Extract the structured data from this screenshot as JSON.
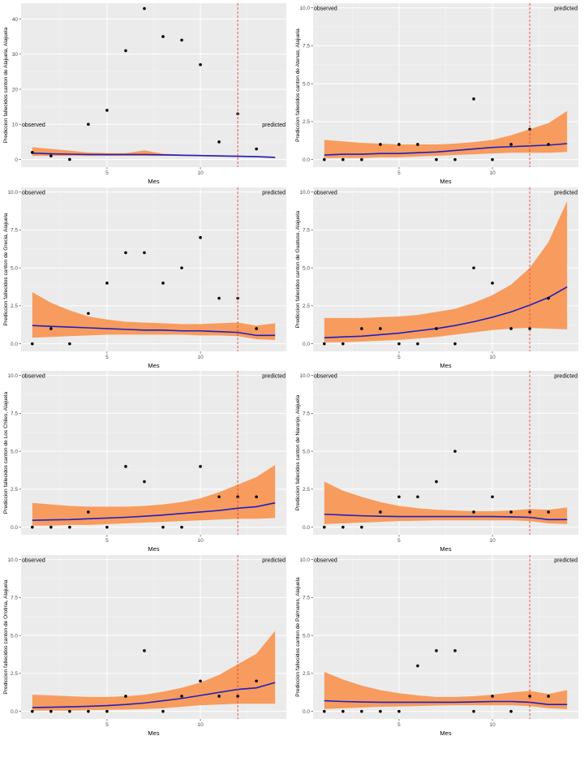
{
  "chart_data": [
    {
      "type": "line",
      "ylabel": "Prediccion fallecidos canton de Alajuela, Alajuela",
      "xlabel": "Mes",
      "xticks": [
        5,
        10
      ],
      "yticks": [
        0,
        10,
        20,
        30,
        40
      ],
      "xlim": [
        0.4,
        14.6
      ],
      "ylim": [
        -2.2,
        44.5
      ],
      "cutoff": 12,
      "annotations": [
        {
          "text": "observed"
        },
        {
          "text": "predicted"
        }
      ],
      "label_y": 10,
      "points": {
        "x": [
          1,
          2,
          3,
          4,
          5,
          6,
          7,
          8,
          9,
          10,
          11,
          12,
          13
        ],
        "y": [
          2,
          1,
          0,
          10,
          14,
          31,
          43,
          35,
          34,
          27,
          5,
          13,
          3
        ]
      },
      "fit": {
        "x": [
          1,
          2,
          3,
          4,
          5,
          6,
          7,
          8,
          9,
          10,
          11,
          12,
          13,
          14
        ],
        "y": [
          1.8,
          1.6,
          1.5,
          1.4,
          1.4,
          1.4,
          1.4,
          1.3,
          1.2,
          1.1,
          1.0,
          0.9,
          0.8,
          0.6
        ],
        "lower": [
          1.0,
          1.0,
          1.0,
          1.0,
          1.0,
          1.0,
          1.0,
          1.0,
          1.0,
          0.9,
          0.8,
          0.7,
          0.6,
          0.4
        ],
        "upper": [
          3.5,
          3.0,
          2.5,
          2.0,
          1.8,
          1.8,
          2.6,
          1.6,
          1.4,
          1.3,
          1.2,
          1.1,
          1.0,
          0.8
        ]
      }
    },
    {
      "type": "line",
      "ylabel": "Prediccion fallecidos canton de Atenas, Alajuela",
      "xlabel": "Mes",
      "xticks": [
        5,
        10
      ],
      "yticks": [
        0,
        2.5,
        5.0,
        7.5,
        10.0
      ],
      "ytick_labels": [
        "0.0",
        "2.5",
        "5.0",
        "7.5",
        "10.0"
      ],
      "xlim": [
        0.4,
        14.6
      ],
      "ylim": [
        -0.5,
        10.3
      ],
      "cutoff": 12,
      "annotations": [
        {
          "text": "observed"
        },
        {
          "text": "predicted"
        }
      ],
      "label_y": 10,
      "points": {
        "x": [
          1,
          2,
          3,
          4,
          5,
          6,
          7,
          8,
          9,
          10,
          11,
          12,
          13
        ],
        "y": [
          0,
          0,
          0,
          1,
          1,
          1,
          0,
          0,
          4,
          0,
          1,
          2,
          1
        ]
      },
      "fit": {
        "x": [
          1,
          2,
          3,
          4,
          5,
          6,
          7,
          8,
          9,
          10,
          11,
          12,
          13,
          14
        ],
        "y": [
          0.3,
          0.35,
          0.35,
          0.4,
          0.4,
          0.45,
          0.5,
          0.6,
          0.7,
          0.8,
          0.85,
          0.9,
          0.95,
          1.05
        ],
        "lower": [
          0.1,
          0.1,
          0.1,
          0.15,
          0.15,
          0.2,
          0.25,
          0.3,
          0.35,
          0.4,
          0.45,
          0.45,
          0.45,
          0.5
        ],
        "upper": [
          1.3,
          1.2,
          1.1,
          1.05,
          1.0,
          1.0,
          1.0,
          1.05,
          1.15,
          1.3,
          1.6,
          2.0,
          2.4,
          3.2
        ]
      }
    },
    {
      "type": "line",
      "ylabel": "Prediccion fallecidos canton de Grecia, Alajuela",
      "xlabel": "Mes",
      "xticks": [
        5,
        10
      ],
      "yticks": [
        0,
        2.5,
        5.0,
        7.5,
        10.0
      ],
      "ytick_labels": [
        "0.0",
        "2.5",
        "5.0",
        "7.5",
        "10.0"
      ],
      "xlim": [
        0.4,
        14.6
      ],
      "ylim": [
        -0.5,
        10.3
      ],
      "cutoff": 12,
      "annotations": [
        {
          "text": "observed"
        },
        {
          "text": "predicted"
        }
      ],
      "label_y": 10,
      "points": {
        "x": [
          1,
          2,
          3,
          4,
          5,
          6,
          7,
          8,
          9,
          10,
          11,
          12,
          13
        ],
        "y": [
          0,
          1,
          0,
          2,
          4,
          6,
          6,
          4,
          5,
          7,
          3,
          3,
          1
        ]
      },
      "fit": {
        "x": [
          1,
          2,
          3,
          4,
          5,
          6,
          7,
          8,
          9,
          10,
          11,
          12,
          13,
          14
        ],
        "y": [
          1.2,
          1.15,
          1.1,
          1.05,
          1.0,
          0.95,
          0.9,
          0.9,
          0.85,
          0.85,
          0.8,
          0.75,
          0.55,
          0.55
        ],
        "lower": [
          0.4,
          0.45,
          0.5,
          0.55,
          0.6,
          0.6,
          0.6,
          0.6,
          0.6,
          0.55,
          0.55,
          0.5,
          0.3,
          0.25
        ],
        "upper": [
          3.4,
          2.7,
          2.2,
          1.8,
          1.6,
          1.45,
          1.4,
          1.35,
          1.3,
          1.3,
          1.35,
          1.4,
          1.2,
          1.35
        ]
      }
    },
    {
      "type": "line",
      "ylabel": "Prediccion fallecidos canton de Guatuso, Alajuela",
      "xlabel": "Mes",
      "xticks": [
        5,
        10
      ],
      "yticks": [
        0,
        2.5,
        5.0,
        7.5,
        10.0
      ],
      "ytick_labels": [
        "0.0",
        "2.5",
        "5.0",
        "7.5",
        "10.0"
      ],
      "xlim": [
        0.4,
        14.6
      ],
      "ylim": [
        -0.5,
        10.3
      ],
      "cutoff": 12,
      "annotations": [
        {
          "text": "observed"
        },
        {
          "text": "predicted"
        }
      ],
      "label_y": 10,
      "points": {
        "x": [
          1,
          2,
          3,
          4,
          5,
          6,
          7,
          8,
          9,
          10,
          11,
          12,
          13
        ],
        "y": [
          0,
          0,
          1,
          1,
          0,
          0,
          1,
          0,
          5,
          4,
          1,
          1,
          3
        ]
      },
      "fit": {
        "x": [
          1,
          2,
          3,
          4,
          5,
          6,
          7,
          8,
          9,
          10,
          11,
          12,
          13,
          14
        ],
        "y": [
          0.4,
          0.45,
          0.5,
          0.6,
          0.7,
          0.85,
          1.0,
          1.2,
          1.45,
          1.75,
          2.1,
          2.55,
          3.05,
          3.75
        ],
        "lower": [
          0.1,
          0.1,
          0.15,
          0.2,
          0.25,
          0.35,
          0.45,
          0.6,
          0.75,
          0.9,
          1.0,
          1.05,
          1.0,
          0.95
        ],
        "upper": [
          1.7,
          1.7,
          1.7,
          1.75,
          1.8,
          1.9,
          2.1,
          2.3,
          2.7,
          3.2,
          3.9,
          5.0,
          6.7,
          9.4
        ]
      }
    },
    {
      "type": "line",
      "ylabel": "Prediccion fallecidos canton de Los Chiles, Alajuela",
      "xlabel": "Mes",
      "xticks": [
        5,
        10
      ],
      "yticks": [
        0,
        2.5,
        5.0,
        7.5,
        10.0
      ],
      "ytick_labels": [
        "0.0",
        "2.5",
        "5.0",
        "7.5",
        "10.0"
      ],
      "xlim": [
        0.4,
        14.6
      ],
      "ylim": [
        -0.5,
        10.3
      ],
      "cutoff": 12,
      "annotations": [
        {
          "text": "observed"
        },
        {
          "text": "predicted"
        }
      ],
      "label_y": 10,
      "points": {
        "x": [
          1,
          2,
          3,
          4,
          5,
          6,
          7,
          8,
          9,
          10,
          11,
          12,
          13
        ],
        "y": [
          0,
          0,
          0,
          1,
          0,
          4,
          3,
          0,
          0,
          4,
          2,
          2,
          2
        ]
      },
      "fit": {
        "x": [
          1,
          2,
          3,
          4,
          5,
          6,
          7,
          8,
          9,
          10,
          11,
          12,
          13,
          14
        ],
        "y": [
          0.45,
          0.48,
          0.5,
          0.55,
          0.6,
          0.65,
          0.72,
          0.8,
          0.9,
          1.0,
          1.1,
          1.25,
          1.35,
          1.6
        ],
        "lower": [
          0.1,
          0.1,
          0.15,
          0.15,
          0.2,
          0.25,
          0.3,
          0.35,
          0.4,
          0.45,
          0.5,
          0.55,
          0.55,
          0.6
        ],
        "upper": [
          1.6,
          1.5,
          1.4,
          1.35,
          1.35,
          1.35,
          1.4,
          1.5,
          1.65,
          1.9,
          2.3,
          2.8,
          3.3,
          4.1
        ]
      }
    },
    {
      "type": "line",
      "ylabel": "Prediccion fallecidos canton de Naranjo, Alajuela",
      "xlabel": "Mes",
      "xticks": [
        5,
        10
      ],
      "yticks": [
        0,
        2.5,
        5.0,
        7.5,
        10.0
      ],
      "ytick_labels": [
        "0.0",
        "2.5",
        "5.0",
        "7.5",
        "10.0"
      ],
      "xlim": [
        0.4,
        14.6
      ],
      "ylim": [
        -0.5,
        10.3
      ],
      "cutoff": 12,
      "annotations": [
        {
          "text": "observed"
        },
        {
          "text": "predicted"
        }
      ],
      "label_y": 10,
      "points": {
        "x": [
          1,
          2,
          3,
          4,
          5,
          6,
          7,
          8,
          9,
          10,
          11,
          12,
          13
        ],
        "y": [
          0,
          0,
          0,
          1,
          2,
          2,
          3,
          5,
          1,
          2,
          1,
          1,
          1
        ]
      },
      "fit": {
        "x": [
          1,
          2,
          3,
          4,
          5,
          6,
          7,
          8,
          9,
          10,
          11,
          12,
          13,
          14
        ],
        "y": [
          0.85,
          0.8,
          0.75,
          0.72,
          0.7,
          0.7,
          0.7,
          0.7,
          0.7,
          0.7,
          0.68,
          0.65,
          0.5,
          0.5
        ],
        "lower": [
          0.2,
          0.25,
          0.3,
          0.35,
          0.4,
          0.42,
          0.45,
          0.45,
          0.45,
          0.45,
          0.45,
          0.4,
          0.25,
          0.2
        ],
        "upper": [
          3.0,
          2.4,
          2.0,
          1.65,
          1.4,
          1.25,
          1.15,
          1.1,
          1.05,
          1.05,
          1.1,
          1.2,
          1.15,
          1.3
        ]
      }
    },
    {
      "type": "line",
      "ylabel": "Prediccion fallecidos canton de Orotina, Alajuela",
      "xlabel": "Mes",
      "xticks": [
        5,
        10
      ],
      "yticks": [
        0,
        2.5,
        5.0,
        7.5,
        10.0
      ],
      "ytick_labels": [
        "0.0",
        "2.5",
        "5.0",
        "7.5",
        "10.0"
      ],
      "xlim": [
        0.4,
        14.6
      ],
      "ylim": [
        -0.5,
        10.3
      ],
      "cutoff": 12,
      "annotations": [
        {
          "text": "observed"
        },
        {
          "text": "predicted"
        }
      ],
      "label_y": 10,
      "points": {
        "x": [
          1,
          2,
          3,
          4,
          5,
          6,
          7,
          8,
          9,
          10,
          11,
          12,
          13
        ],
        "y": [
          0,
          0,
          0,
          0,
          0,
          1,
          4,
          0,
          1,
          2,
          1,
          1,
          2
        ]
      },
      "fit": {
        "x": [
          1,
          2,
          3,
          4,
          5,
          6,
          7,
          8,
          9,
          10,
          11,
          12,
          13,
          14
        ],
        "y": [
          0.25,
          0.27,
          0.3,
          0.33,
          0.38,
          0.45,
          0.55,
          0.7,
          0.85,
          1.05,
          1.25,
          1.45,
          1.55,
          1.9
        ],
        "lower": [
          0.05,
          0.05,
          0.05,
          0.08,
          0.1,
          0.12,
          0.15,
          0.2,
          0.3,
          0.4,
          0.45,
          0.5,
          0.5,
          0.5
        ],
        "upper": [
          1.1,
          1.05,
          1.0,
          0.95,
          0.95,
          1.0,
          1.1,
          1.3,
          1.55,
          1.9,
          2.4,
          3.1,
          3.8,
          5.3
        ]
      }
    },
    {
      "type": "line",
      "ylabel": "Prediccion fallecidos canton de Palmares, Alajuela",
      "xlabel": "Mes",
      "xticks": [
        5,
        10
      ],
      "yticks": [
        0,
        2.5,
        5.0,
        7.5,
        10.0
      ],
      "ytick_labels": [
        "0.0",
        "2.5",
        "5.0",
        "7.5",
        "10.0"
      ],
      "xlim": [
        0.4,
        14.6
      ],
      "ylim": [
        -0.5,
        10.3
      ],
      "cutoff": 12,
      "annotations": [
        {
          "text": "observed"
        },
        {
          "text": "predicted"
        }
      ],
      "label_y": 10,
      "points": {
        "x": [
          1,
          2,
          3,
          4,
          5,
          6,
          7,
          8,
          9,
          10,
          11,
          12,
          13
        ],
        "y": [
          0,
          0,
          0,
          0,
          0,
          3,
          4,
          4,
          0,
          1,
          0,
          1,
          1
        ]
      },
      "fit": {
        "x": [
          1,
          2,
          3,
          4,
          5,
          6,
          7,
          8,
          9,
          10,
          11,
          12,
          13,
          14
        ],
        "y": [
          0.7,
          0.65,
          0.62,
          0.6,
          0.6,
          0.6,
          0.6,
          0.6,
          0.62,
          0.65,
          0.65,
          0.6,
          0.45,
          0.45
        ],
        "lower": [
          0.15,
          0.2,
          0.25,
          0.3,
          0.32,
          0.35,
          0.38,
          0.4,
          0.4,
          0.4,
          0.4,
          0.35,
          0.2,
          0.15
        ],
        "upper": [
          2.6,
          2.1,
          1.7,
          1.4,
          1.2,
          1.05,
          0.95,
          0.95,
          1.0,
          1.1,
          1.25,
          1.35,
          1.15,
          1.4
        ]
      }
    }
  ],
  "colors": {
    "panel_bg": "#ebebeb",
    "grid_major": "#ffffff",
    "band": "#f79c5e",
    "fit_line": "#1f1fbf",
    "points": "#000000",
    "cutoff": "#e8413a",
    "text": "#000000",
    "tick_text": "#4d4d4d"
  }
}
